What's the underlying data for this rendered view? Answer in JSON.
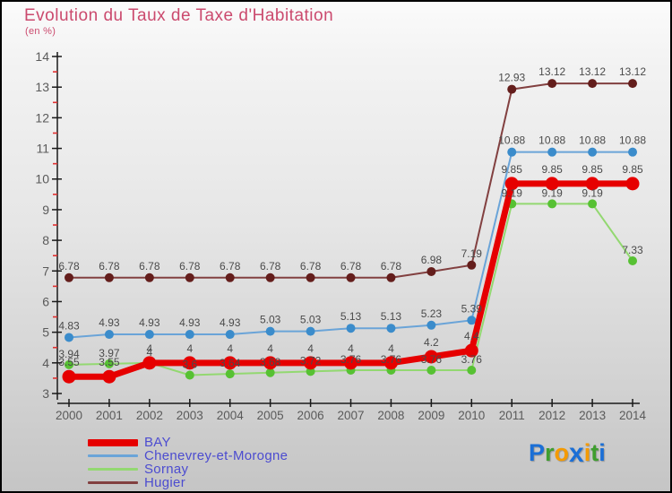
{
  "title": "Evolution du Taux de Taxe d'Habitation",
  "subtitle": "(en %)",
  "colors": {
    "title": "#cb4a6e",
    "axis": "#1a1a1a",
    "minor_tick": "#e03030",
    "tick_label": "#5a5a5a",
    "data_label": "#4a4a4a",
    "legend_text": "#4c4cd0"
  },
  "chart_data": {
    "type": "line",
    "x": [
      2000,
      2001,
      2002,
      2003,
      2004,
      2005,
      2006,
      2007,
      2008,
      2009,
      2010,
      2011,
      2012,
      2013,
      2014
    ],
    "ylim": [
      3,
      14
    ],
    "y_ticks": [
      3,
      4,
      5,
      6,
      7,
      8,
      9,
      10,
      11,
      12,
      13,
      14
    ],
    "y_minor_step": 0.5,
    "grid": false,
    "legend_position": "bottom-left",
    "point_labels": true,
    "series": [
      {
        "name": "BAY",
        "line_color": "#e60000",
        "dot_color": "#e60000",
        "line_width": 7,
        "dot_radius": 7.5,
        "label_dy": -12,
        "values": [
          3.55,
          3.55,
          4,
          4,
          4,
          4,
          4,
          4,
          4,
          4.2,
          4.4,
          9.85,
          9.85,
          9.85,
          9.85
        ]
      },
      {
        "name": "Chenevrey-et-Morogne",
        "line_color": "#6aa4d8",
        "dot_color": "#3b8ccb",
        "line_width": 2,
        "dot_radius": 5,
        "label_dy": -9,
        "values": [
          4.83,
          4.93,
          4.93,
          4.93,
          4.93,
          5.03,
          5.03,
          5.13,
          5.13,
          5.23,
          5.39,
          10.88,
          10.88,
          10.88,
          10.88
        ]
      },
      {
        "name": "Sornay",
        "line_color": "#93d871",
        "dot_color": "#57c133",
        "line_width": 2,
        "dot_radius": 5,
        "label_dy": -8,
        "values": [
          3.94,
          3.97,
          4,
          3.6,
          3.64,
          3.68,
          3.72,
          3.76,
          3.76,
          3.76,
          3.76,
          9.19,
          9.19,
          9.19,
          7.33
        ]
      },
      {
        "name": "Hugier",
        "line_color": "#824040",
        "dot_color": "#641e1c",
        "line_width": 2,
        "dot_radius": 5,
        "label_dy": -9,
        "values": [
          6.78,
          6.78,
          6.78,
          6.78,
          6.78,
          6.78,
          6.78,
          6.78,
          6.78,
          6.98,
          7.19,
          12.93,
          13.12,
          13.12,
          13.12
        ]
      }
    ]
  },
  "logo": {
    "name": "Proxiti",
    "letters": [
      {
        "ch": "P",
        "color": "#1b6fd6"
      },
      {
        "ch": "r",
        "color": "#3f9e2f"
      },
      {
        "ch": "o",
        "color": "#f49a00"
      },
      {
        "ch": "x",
        "color": "#1b6fd6",
        "big": true
      },
      {
        "ch": "i",
        "color": "#f49a00"
      },
      {
        "ch": "t",
        "color": "#3f9e2f"
      },
      {
        "ch": "i",
        "color": "#1b6fd6"
      }
    ]
  }
}
